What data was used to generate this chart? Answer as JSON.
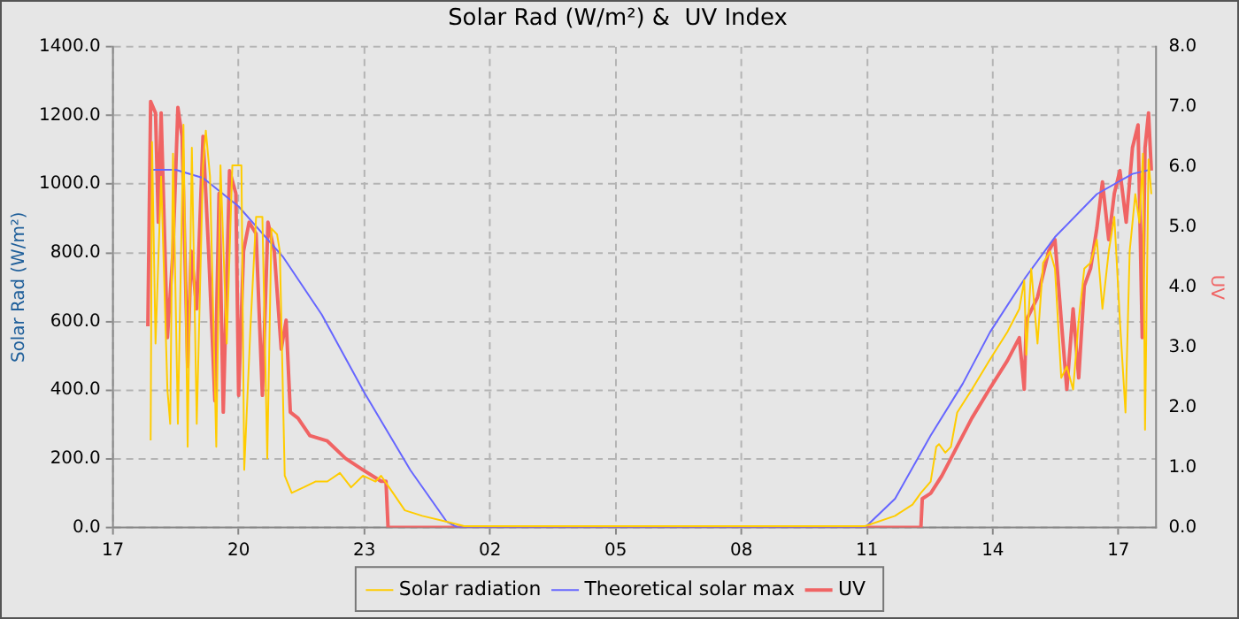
{
  "chart_data": {
    "type": "line",
    "title": "Solar Rad (W/m²) &  UV Index",
    "ylabel": "Solar Rad (W/m²)",
    "y2label": "UV",
    "xlim": [
      "--01-01T17:00",
      "--01-02T17:54"
    ],
    "xticks": [
      {
        "value": "--01-01T17:00",
        "label": "17"
      },
      {
        "value": "--01-01T20:00",
        "label": "20"
      },
      {
        "value": "--01-01T23:00",
        "label": "23"
      },
      {
        "value": "--01-02T02:00",
        "label": "02"
      },
      {
        "value": "--01-02T05:00",
        "label": "05"
      },
      {
        "value": "--01-02T08:00",
        "label": "08"
      },
      {
        "value": "--01-02T11:00",
        "label": "11"
      },
      {
        "value": "--01-02T14:00",
        "label": "14"
      },
      {
        "value": "--01-02T17:00",
        "label": "17"
      }
    ],
    "ylim": [
      0,
      1400
    ],
    "yticks": [
      {
        "value": 0,
        "label": "0.0"
      },
      {
        "value": 200,
        "label": "200.0"
      },
      {
        "value": 400,
        "label": "400.0"
      },
      {
        "value": 600,
        "label": "600.0"
      },
      {
        "value": 800,
        "label": "800.0"
      },
      {
        "value": 1000,
        "label": "1000.0"
      },
      {
        "value": 1200,
        "label": "1200.0"
      },
      {
        "value": 1400,
        "label": "1400.0"
      }
    ],
    "y2lim": [
      0,
      8
    ],
    "y2ticks": [
      {
        "value": 0,
        "label": "0.0"
      },
      {
        "value": 1,
        "label": "1.0"
      },
      {
        "value": 2,
        "label": "2.0"
      },
      {
        "value": 3,
        "label": "3.0"
      },
      {
        "value": 4,
        "label": "4.0"
      },
      {
        "value": 5,
        "label": "5.0"
      },
      {
        "value": 6,
        "label": "6.0"
      },
      {
        "value": 7,
        "label": "7.0"
      },
      {
        "value": 8,
        "label": "8.0"
      }
    ],
    "grid": true,
    "legend": "bottom",
    "marker": "none",
    "line_style": "solid",
    "series": [
      {
        "name": "Solar radiation",
        "color": "#ffcc00",
        "x": [
          "--01-01T17:54",
          "--01-01T17:56",
          "--01-01T18:01",
          "--01-01T18:09",
          "--01-01T18:18",
          "--01-01T18:22",
          "--01-01T18:26",
          "--01-01T18:33",
          "--01-01T18:41",
          "--01-01T18:47",
          "--01-01T18:53",
          "--01-01T19:00",
          "--01-01T19:09",
          "--01-01T19:13",
          "--01-01T19:19",
          "--01-01T19:28",
          "--01-01T19:34",
          "--01-01T19:43",
          "--01-01T19:51",
          "--01-01T20:00",
          "--01-01T20:04",
          "--01-01T20:08",
          "--01-01T20:17",
          "--01-01T20:25",
          "--01-01T20:34",
          "--01-01T20:41",
          "--01-01T20:47",
          "--01-01T20:55",
          "--01-01T20:59",
          "--01-01T21:06",
          "--01-01T21:16",
          "--01-01T21:33",
          "--01-01T21:50",
          "--01-01T22:07",
          "--01-01T22:25",
          "--01-01T22:41",
          "--01-01T22:58",
          "--01-01T23:16",
          "--01-01T23:24",
          "--01-01T23:41",
          "--01-01T23:58",
          "--01-02T00:23",
          "--01-02T00:58",
          "--01-02T01:23",
          "--01-02T10:57",
          "--01-02T11:40",
          "--01-02T12:05",
          "--01-02T12:17",
          "--01-02T12:31",
          "--01-02T12:39",
          "--01-02T12:43",
          "--01-02T12:52",
          "--01-02T13:00",
          "--01-02T13:09",
          "--01-02T13:30",
          "--01-02T13:55",
          "--01-02T14:21",
          "--01-02T14:38",
          "--01-02T14:45",
          "--01-02T14:48",
          "--01-02T14:55",
          "--01-02T15:04",
          "--01-02T15:12",
          "--01-02T15:22",
          "--01-02T15:29",
          "--01-02T15:38",
          "--01-02T15:46",
          "--01-02T15:55",
          "--01-02T16:03",
          "--01-02T16:11",
          "--01-02T16:20",
          "--01-02T16:29",
          "--01-02T16:37",
          "--01-02T16:46",
          "--01-02T16:54",
          "--01-02T17:02",
          "--01-02T17:10",
          "--01-02T17:16",
          "--01-02T17:24",
          "--01-02T17:30",
          "--01-02T17:35",
          "--01-02T17:38",
          "--01-02T17:43",
          "--01-02T17:47"
        ],
        "values": [
          254,
          1123,
          536,
          1022,
          402,
          302,
          1089,
          302,
          1173,
          235,
          1106,
          302,
          1055,
          1156,
          1022,
          235,
          1055,
          536,
          1055,
          1055,
          1055,
          168,
          586,
          905,
          905,
          201,
          871,
          854,
          804,
          151,
          101,
          117,
          134,
          134,
          159,
          117,
          151,
          134,
          151,
          101,
          50,
          34,
          17,
          4,
          4,
          34,
          67,
          101,
          134,
          235,
          243,
          218,
          235,
          335,
          402,
          486,
          570,
          637,
          720,
          503,
          754,
          536,
          771,
          804,
          754,
          436,
          469,
          402,
          603,
          754,
          771,
          838,
          637,
          804,
          905,
          603,
          335,
          804,
          971,
          888,
          1089,
          285,
          1072,
          971
        ]
      },
      {
        "name": "Theoretical solar max",
        "color": "#6666ff",
        "x": [
          "--01-01T17:54",
          "--01-01T18:30",
          "--01-01T19:09",
          "--01-01T20:00",
          "--01-01T21:04",
          "--01-01T21:59",
          "--01-01T23:00",
          "--01-02T00:06",
          "--01-02T00:58",
          "--01-02T01:14",
          "--01-02T10:57",
          "--01-02T11:40",
          "--01-02T12:31",
          "--01-02T13:17",
          "--01-02T13:56",
          "--01-02T14:47",
          "--01-02T15:29",
          "--01-02T16:29",
          "--01-02T17:20",
          "--01-02T17:45"
        ],
        "values": [
          1042,
          1042,
          1018,
          935,
          787,
          620,
          393,
          167,
          17,
          0,
          0,
          84,
          268,
          419,
          569,
          729,
          846,
          971,
          1030,
          1042
        ]
      },
      {
        "name": "UV",
        "color": "#f06464",
        "axis": "y2",
        "x": [
          "--01-01T17:50",
          "--01-01T17:54",
          "--01-01T18:01",
          "--01-01T18:05",
          "--01-01T18:09",
          "--01-01T18:18",
          "--01-01T18:26",
          "--01-01T18:33",
          "--01-01T18:39",
          "--01-01T18:47",
          "--01-01T18:52",
          "--01-01T19:00",
          "--01-01T19:09",
          "--01-01T19:17",
          "--01-01T19:26",
          "--01-01T19:32",
          "--01-01T19:38",
          "--01-01T19:47",
          "--01-01T19:56",
          "--01-01T20:00",
          "--01-01T20:07",
          "--01-01T20:15",
          "--01-01T20:25",
          "--01-01T20:34",
          "--01-01T20:42",
          "--01-01T20:51",
          "--01-01T21:01",
          "--01-01T21:08",
          "--01-01T21:14",
          "--01-01T21:25",
          "--01-01T21:42",
          "--01-01T22:07",
          "--01-01T22:33",
          "--01-01T22:58",
          "--01-01T23:24",
          "--01-01T23:31",
          "--01-01T23:34",
          "--01-02T12:17",
          "--01-02T12:19",
          "--01-02T12:31",
          "--01-02T12:47",
          "--01-02T13:04",
          "--01-02T13:30",
          "--01-02T13:55",
          "--01-02T14:21",
          "--01-02T14:38",
          "--01-02T14:45",
          "--01-02T14:48",
          "--01-02T15:04",
          "--01-02T15:20",
          "--01-02T15:29",
          "--01-02T15:38",
          "--01-02T15:46",
          "--01-02T15:55",
          "--01-02T16:03",
          "--01-02T16:11",
          "--01-02T16:20",
          "--01-02T16:29",
          "--01-02T16:37",
          "--01-02T16:46",
          "--01-02T16:54",
          "--01-02T17:02",
          "--01-02T17:11",
          "--01-02T17:20",
          "--01-02T17:28",
          "--01-02T17:34",
          "--01-02T17:38",
          "--01-02T17:43",
          "--01-02T17:47"
        ],
        "values": [
          3.35,
          7.09,
          6.9,
          5.08,
          6.9,
          3.16,
          4.6,
          6.99,
          6.51,
          2.68,
          4.6,
          3.64,
          6.51,
          4.6,
          2.11,
          5.56,
          1.92,
          5.94,
          5.56,
          2.2,
          4.6,
          5.08,
          4.89,
          2.2,
          5.08,
          4.6,
          2.97,
          3.45,
          1.92,
          1.82,
          1.53,
          1.44,
          1.15,
          0.96,
          0.77,
          0.77,
          0,
          0,
          0.48,
          0.57,
          0.86,
          1.24,
          1.82,
          2.3,
          2.78,
          3.16,
          2.3,
          3.45,
          3.83,
          4.6,
          4.79,
          3.45,
          2.3,
          3.64,
          2.49,
          4.02,
          4.31,
          4.98,
          5.75,
          4.79,
          5.56,
          5.94,
          5.08,
          6.32,
          6.7,
          3.16,
          6.32,
          6.9,
          5.94
        ]
      }
    ]
  }
}
